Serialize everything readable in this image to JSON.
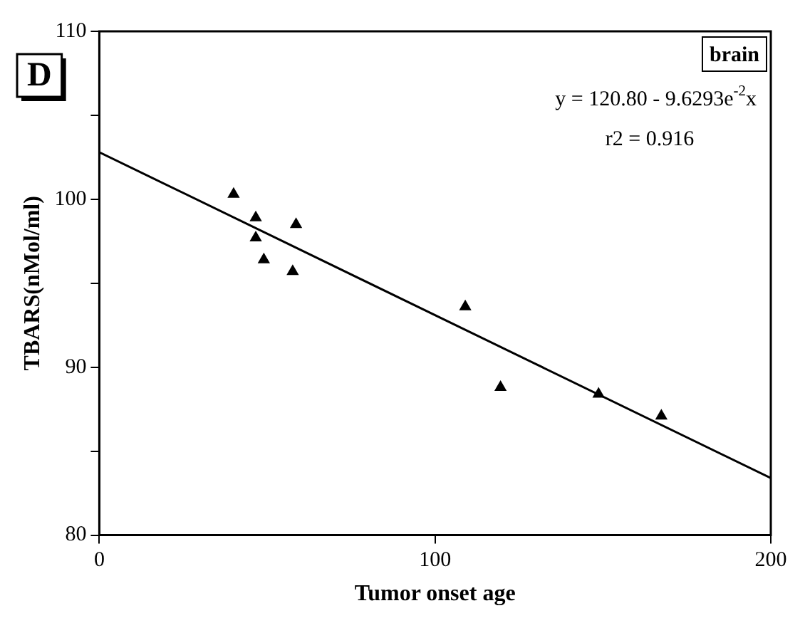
{
  "chart_data": {
    "type": "scatter",
    "xlabel": "Tumor onset age",
    "ylabel": "TBARS(nMol/ml)",
    "annotations": [
      "D",
      "brain",
      "y = 120.80 - 9.6293e$^{-2}$x",
      "r2 = 0.916"
    ],
    "series": [
      {
        "marker": "triangle",
        "color": "#000000",
        "x": [
          40,
          46.6,
          46.6,
          49,
          58.6,
          57.6,
          109,
          119.5,
          148.7,
          167.4
        ],
        "values": [
          100.3,
          98.9,
          97.7,
          96.4,
          98.5,
          95.7,
          93.6,
          88.8,
          88.4,
          87.1
        ]
      },
      {
        "type": "line",
        "marker": "none",
        "color": "#000000",
        "x": [
          0,
          200
        ],
        "values": [
          102.8,
          83.4
        ]
      }
    ],
    "xlim": [
      0,
      200
    ],
    "xticks": [
      0,
      100,
      200
    ],
    "ylim": [
      80,
      110
    ],
    "yticks": [
      80,
      {
        "value": 85,
        "label": null
      },
      90,
      {
        "value": 95,
        "label": null
      },
      100,
      {
        "value": 105,
        "label": null
      },
      110
    ],
    "grid": false,
    "legend": false
  }
}
